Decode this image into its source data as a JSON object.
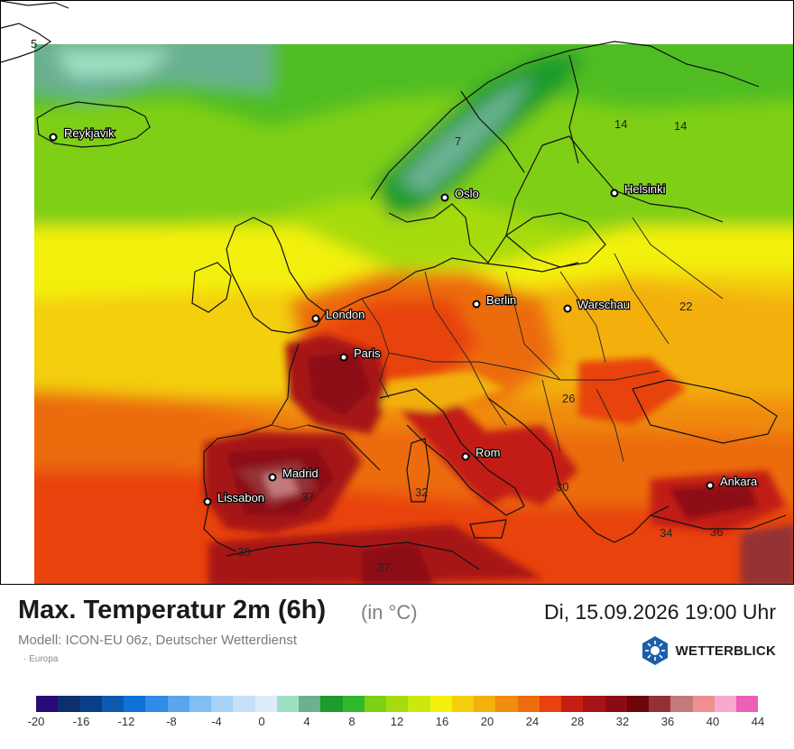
{
  "header": {
    "title": "Max. Temperatur 2m (6h)",
    "unit": "(in °C)",
    "datetime": "Di, 15.09.2026 19:00 Uhr",
    "model": "Modell: ICON-EU 06z, Deutscher Wetterdienst",
    "region": "· Europa"
  },
  "brand": {
    "name": "WETTERBLICK",
    "icon": "sun-snowflake-logo-icon",
    "color": "#1b5fa8"
  },
  "cities": [
    {
      "name": "Reykjavik"
    },
    {
      "name": "Oslo"
    },
    {
      "name": "Helsinki"
    },
    {
      "name": "Berlin"
    },
    {
      "name": "Warschau"
    },
    {
      "name": "London"
    },
    {
      "name": "Paris"
    },
    {
      "name": "Madrid"
    },
    {
      "name": "Lissabon"
    },
    {
      "name": "Rom"
    },
    {
      "name": "Ankara"
    }
  ],
  "isolines": [
    "5",
    "14",
    "14",
    "7",
    "22",
    "26",
    "37",
    "32",
    "30",
    "34",
    "36",
    "38",
    "37"
  ],
  "legend": {
    "colors": [
      "#2a0a78",
      "#0c2f6e",
      "#073f8a",
      "#0c5bb0",
      "#0f72d6",
      "#2e8ce6",
      "#58a6ee",
      "#82bdf3",
      "#a8d2f7",
      "#c6e0fa",
      "#dcecfd",
      "#9ee0c3",
      "#6ab092",
      "#1f9b2c",
      "#30b82b",
      "#7fcf14",
      "#a6dc0f",
      "#cde80e",
      "#f3f00e",
      "#f3cf0e",
      "#f3b00e",
      "#f08c0e",
      "#ec6c0e",
      "#e8420e",
      "#c31e12",
      "#a71214",
      "#8c0a14",
      "#6e0508",
      "#943036",
      "#c47a7a",
      "#ef8f8f",
      "#f7a9cf",
      "#eb5fb6"
    ],
    "ticks": [
      "-20",
      "-16",
      "-12",
      "-8",
      "-4",
      "0",
      "4",
      "8",
      "12",
      "16",
      "20",
      "24",
      "28",
      "32",
      "36",
      "40",
      "44"
    ]
  }
}
